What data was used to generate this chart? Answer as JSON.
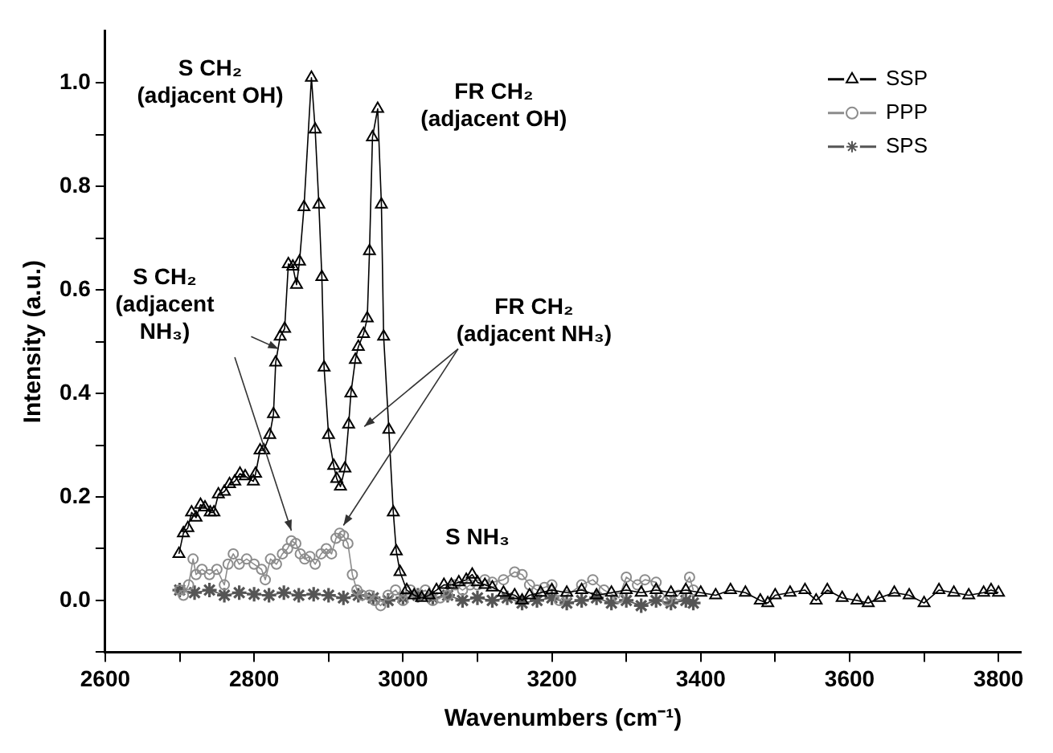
{
  "chart_data": {
    "type": "line",
    "xlabel": "Wavenumbers (cm⁻¹)",
    "ylabel": "Intensity (a.u.)",
    "xlim": [
      2600,
      3830
    ],
    "ylim": [
      -0.1,
      1.1
    ],
    "xticks": [
      2600,
      {
        "value": 2700,
        "label": null
      },
      2800,
      {
        "value": 2900,
        "label": null
      },
      3000,
      {
        "value": 3100,
        "label": null
      },
      3200,
      {
        "value": 3300,
        "label": null
      },
      3400,
      {
        "value": 3500,
        "label": null
      },
      3600,
      {
        "value": 3700,
        "label": null
      },
      3800
    ],
    "yticks": [
      {
        "value": -0.1,
        "label": null
      },
      {
        "value": 0,
        "label": "0.0"
      },
      {
        "value": 0.1,
        "label": null
      },
      {
        "value": 0.2,
        "label": "0.2"
      },
      {
        "value": 0.3,
        "label": null
      },
      {
        "value": 0.4,
        "label": "0.4"
      },
      {
        "value": 0.5,
        "label": null
      },
      {
        "value": 0.6,
        "label": "0.6"
      },
      {
        "value": 0.7,
        "label": null
      },
      {
        "value": 0.8,
        "label": "0.8"
      },
      {
        "value": 0.9,
        "label": null
      },
      {
        "value": 1.0,
        "label": "1.0"
      }
    ],
    "grid": false,
    "legend": "top right",
    "line_style": "solid",
    "series": [
      {
        "name": "SSP",
        "color": "#000000",
        "marker": "triangle",
        "x": [
          2699,
          2705,
          2711,
          2716,
          2722,
          2728,
          2734,
          2741,
          2746,
          2752,
          2760,
          2767,
          2774,
          2781,
          2788,
          2799,
          2802,
          2808,
          2813,
          2821,
          2826,
          2829,
          2835,
          2841,
          2846,
          2852,
          2857,
          2861,
          2867,
          2877,
          2882,
          2887,
          2891,
          2894,
          2900,
          2907,
          2911,
          2916,
          2922,
          2927,
          2930,
          2936,
          2940,
          2947,
          2952,
          2955,
          2959,
          2966,
          2971,
          2974,
          2981,
          2987,
          2991,
          2996,
          3005,
          3015,
          3025,
          3035,
          3045,
          3055,
          3065,
          3075,
          3085,
          3093,
          3100,
          3110,
          3120,
          3135,
          3150,
          3160,
          3170,
          3185,
          3200,
          3220,
          3240,
          3260,
          3280,
          3300,
          3320,
          3340,
          3360,
          3380,
          3400,
          3420,
          3440,
          3460,
          3480,
          3490,
          3500,
          3520,
          3540,
          3555,
          3570,
          3590,
          3610,
          3625,
          3640,
          3660,
          3680,
          3700,
          3720,
          3740,
          3760,
          3780,
          3790,
          3800
        ],
        "values": [
          0.09,
          0.13,
          0.14,
          0.17,
          0.16,
          0.185,
          0.18,
          0.17,
          0.17,
          0.205,
          0.21,
          0.225,
          0.23,
          0.245,
          0.24,
          0.23,
          0.245,
          0.29,
          0.29,
          0.32,
          0.36,
          0.46,
          0.51,
          0.525,
          0.65,
          0.645,
          0.61,
          0.655,
          0.76,
          1.01,
          0.91,
          0.765,
          0.625,
          0.45,
          0.32,
          0.26,
          0.235,
          0.22,
          0.255,
          0.34,
          0.4,
          0.465,
          0.49,
          0.515,
          0.545,
          0.675,
          0.895,
          0.95,
          0.765,
          0.51,
          0.33,
          0.17,
          0.095,
          0.055,
          0.02,
          0.01,
          0.005,
          0.01,
          0.02,
          0.03,
          0.03,
          0.035,
          0.04,
          0.05,
          0.035,
          0.03,
          0.025,
          0.015,
          0.01,
          0.0,
          0.01,
          0.015,
          0.02,
          0.015,
          0.02,
          0.01,
          0.015,
          0.02,
          0.015,
          0.02,
          0.015,
          0.02,
          0.015,
          0.01,
          0.02,
          0.015,
          0.0,
          -0.005,
          0.01,
          0.015,
          0.02,
          0.0,
          0.02,
          0.005,
          0.0,
          -0.005,
          0.005,
          0.015,
          0.01,
          -0.005,
          0.02,
          0.015,
          0.01,
          0.015,
          0.02,
          0.015
        ]
      },
      {
        "name": "PPP",
        "color": "#8c8c8c",
        "marker": "circle",
        "x": [
          2700,
          2705,
          2712,
          2718,
          2722,
          2730,
          2740,
          2750,
          2760,
          2765,
          2772,
          2780,
          2790,
          2800,
          2810,
          2815,
          2822,
          2830,
          2838,
          2845,
          2850,
          2856,
          2862,
          2868,
          2875,
          2882,
          2890,
          2897,
          2904,
          2910,
          2915,
          2920,
          2926,
          2932,
          2938,
          2945,
          2955,
          2962,
          2970,
          2980,
          2990,
          3000,
          3010,
          3020,
          3030,
          3040,
          3050,
          3060,
          3070,
          3080,
          3090,
          3100,
          3110,
          3120,
          3135,
          3150,
          3160,
          3170,
          3180,
          3190,
          3200,
          3210,
          3220,
          3240,
          3255,
          3270,
          3290,
          3300,
          3315,
          3325,
          3340,
          3355,
          3370,
          3385,
          3390
        ],
        "values": [
          0.02,
          0.01,
          0.03,
          0.08,
          0.05,
          0.06,
          0.05,
          0.06,
          0.03,
          0.07,
          0.09,
          0.07,
          0.08,
          0.07,
          0.06,
          0.04,
          0.08,
          0.07,
          0.09,
          0.1,
          0.115,
          0.11,
          0.09,
          0.08,
          0.085,
          0.07,
          0.09,
          0.1,
          0.09,
          0.12,
          0.13,
          0.125,
          0.11,
          0.05,
          0.02,
          0.01,
          0.01,
          0.0,
          -0.01,
          0.01,
          0.02,
          0.0,
          0.02,
          0.01,
          0.02,
          0.0,
          0.005,
          0.01,
          0.03,
          0.02,
          0.03,
          0.03,
          0.04,
          0.035,
          0.04,
          0.055,
          0.05,
          0.03,
          0.02,
          0.025,
          0.03,
          0.0,
          0.01,
          0.03,
          0.04,
          0.02,
          0.005,
          0.045,
          0.03,
          0.04,
          0.035,
          0.0,
          0.01,
          0.045,
          0.02
        ]
      },
      {
        "name": "SPS",
        "color": "#555555",
        "marker": "cross",
        "x": [
          2700,
          2720,
          2740,
          2760,
          2780,
          2800,
          2820,
          2840,
          2860,
          2880,
          2900,
          2920,
          2940,
          2960,
          2980,
          3000,
          3020,
          3040,
          3060,
          3080,
          3100,
          3120,
          3140,
          3160,
          3180,
          3200,
          3220,
          3240,
          3260,
          3280,
          3300,
          3320,
          3340,
          3360,
          3380,
          3390
        ],
        "values": [
          0.02,
          0.015,
          0.02,
          0.01,
          0.015,
          0.012,
          0.01,
          0.015,
          0.01,
          0.012,
          0.01,
          0.005,
          0.01,
          0.005,
          0.0,
          0.005,
          0.01,
          0.005,
          0.01,
          0.0,
          0.005,
          0.0,
          0.005,
          -0.005,
          0.0,
          0.005,
          -0.005,
          0.0,
          0.005,
          -0.005,
          0.0,
          -0.01,
          0.0,
          -0.005,
          0.0,
          -0.005
        ]
      }
    ],
    "annotations": [
      "S CH₂\n(adjacent OH)",
      "FR CH₂\n(adjacent OH)",
      {
        "text": "S CH₂\n(adjacent\nNH₃)",
        "x": 2850,
        "y": 0.115
      },
      {
        "text": "FR CH₂\n(adjacent NH₃)",
        "x": 2920,
        "y": 0.125
      },
      "S NH₃"
    ]
  }
}
